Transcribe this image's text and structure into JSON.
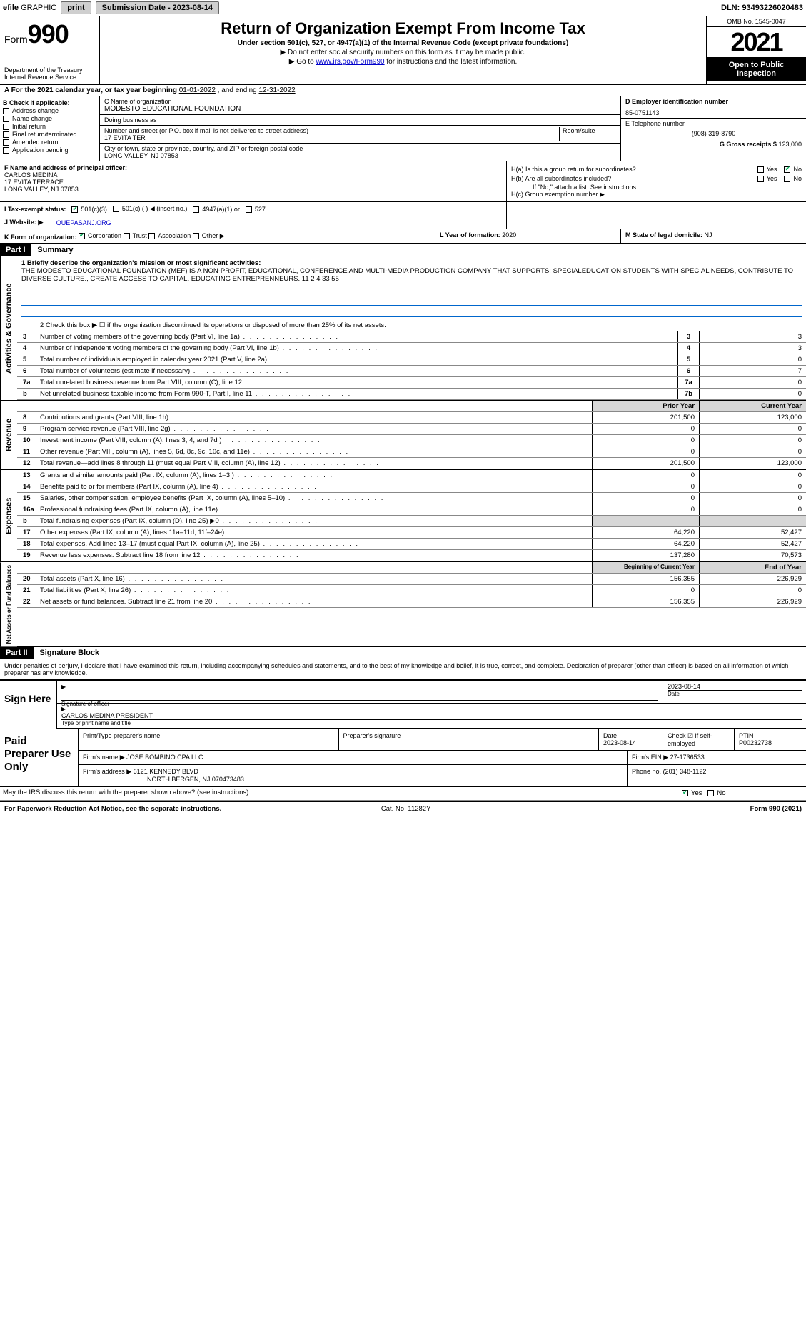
{
  "topbar": {
    "efile_prefix": "efile",
    "efile_graphic": "GRAPHIC",
    "print_btn": "print",
    "submission_label": "Submission Date - 2023-08-14",
    "dln": "DLN: 93493226020483"
  },
  "header": {
    "form_word": "Form",
    "form_num": "990",
    "dept": "Department of the Treasury",
    "irs": "Internal Revenue Service",
    "title": "Return of Organization Exempt From Income Tax",
    "subtitle": "Under section 501(c), 527, or 4947(a)(1) of the Internal Revenue Code (except private foundations)",
    "note1": "▶ Do not enter social security numbers on this form as it may be made public.",
    "note2_pre": "▶ Go to ",
    "note2_link": "www.irs.gov/Form990",
    "note2_post": " for instructions and the latest information.",
    "omb": "OMB No. 1545-0047",
    "year": "2021",
    "pub": "Open to Public Inspection"
  },
  "A": {
    "text_pre": "A For the 2021 calendar year, or tax year beginning ",
    "begin": "01-01-2022",
    "mid": " , and ending ",
    "end": "12-31-2022"
  },
  "B": {
    "label": "B Check if applicable:",
    "items": [
      "Address change",
      "Name change",
      "Initial return",
      "Final return/terminated",
      "Amended return",
      "Application pending"
    ]
  },
  "C": {
    "name_label": "C Name of organization",
    "name": "MODESTO EDUCATIONAL FOUNDATION",
    "dba_label": "Doing business as",
    "dba": "",
    "street_label": "Number and street (or P.O. box if mail is not delivered to street address)",
    "room_label": "Room/suite",
    "street": "17 EVITA TER",
    "city_label": "City or town, state or province, country, and ZIP or foreign postal code",
    "city": "LONG VALLEY, NJ  07853"
  },
  "D": {
    "label": "D Employer identification number",
    "value": "85-0751143"
  },
  "E": {
    "label": "E Telephone number",
    "value": "(908) 319-8790"
  },
  "G": {
    "label": "G Gross receipts $",
    "value": "123,000"
  },
  "F": {
    "label": "F Name and address of principal officer:",
    "name": "CARLOS MEDINA",
    "addr1": "17 EVITA TERRACE",
    "addr2": "LONG VALLEY, NJ  07853"
  },
  "H": {
    "a": "H(a)  Is this a group return for subordinates?",
    "b": "H(b)  Are all subordinates included?",
    "b_note": "If \"No,\" attach a list. See instructions.",
    "c": "H(c)  Group exemption number ▶",
    "yes": "Yes",
    "no": "No"
  },
  "I": {
    "label": "I   Tax-exempt status:",
    "opts": [
      "501(c)(3)",
      "501(c) (   ) ◀ (insert no.)",
      "4947(a)(1) or",
      "527"
    ]
  },
  "J": {
    "label": "J   Website: ▶",
    "value": "QUEPASANJ.ORG"
  },
  "K": {
    "label": "K Form of organization:",
    "opts": [
      "Corporation",
      "Trust",
      "Association",
      "Other ▶"
    ]
  },
  "L": {
    "label": "L Year of formation:",
    "value": "2020"
  },
  "M": {
    "label": "M State of legal domicile:",
    "value": "NJ"
  },
  "part1": {
    "hdr": "Part I",
    "title": "Summary",
    "q1_label": "1  Briefly describe the organization's mission or most significant activities:",
    "q1_text": "THE MODESTO EDUCATIONAL FOUNDATION (MEF) IS A NON-PROFIT, EDUCATIONAL, CONFERENCE AND MULTI-MEDIA PRODUCTION COMPANY THAT SUPPORTS: SPECIALEDUCATION STUDENTS WITH SPECIAL NEEDS, CONTRIBUTE TO DIVERSE CULTURE., CREATE ACCESS TO CAPITAL, EDUCATING ENTREPRENNEURS. 11 2 4 33 55",
    "q2": "2   Check this box ▶ ☐ if the organization discontinued its operations or disposed of more than 25% of its net assets.",
    "lines_gov": [
      {
        "n": "3",
        "t": "Number of voting members of the governing body (Part VI, line 1a)",
        "c": "3",
        "v": "3"
      },
      {
        "n": "4",
        "t": "Number of independent voting members of the governing body (Part VI, line 1b)",
        "c": "4",
        "v": "3"
      },
      {
        "n": "5",
        "t": "Total number of individuals employed in calendar year 2021 (Part V, line 2a)",
        "c": "5",
        "v": "0"
      },
      {
        "n": "6",
        "t": "Total number of volunteers (estimate if necessary)",
        "c": "6",
        "v": "7"
      },
      {
        "n": "7a",
        "t": "Total unrelated business revenue from Part VIII, column (C), line 12",
        "c": "7a",
        "v": "0"
      },
      {
        "n": "b",
        "t": "Net unrelated business taxable income from Form 990-T, Part I, line 11",
        "c": "7b",
        "v": "0"
      }
    ],
    "col_prior": "Prior Year",
    "col_curr": "Current Year",
    "lines_rev": [
      {
        "n": "8",
        "t": "Contributions and grants (Part VIII, line 1h)",
        "p": "201,500",
        "c": "123,000"
      },
      {
        "n": "9",
        "t": "Program service revenue (Part VIII, line 2g)",
        "p": "0",
        "c": "0"
      },
      {
        "n": "10",
        "t": "Investment income (Part VIII, column (A), lines 3, 4, and 7d )",
        "p": "0",
        "c": "0"
      },
      {
        "n": "11",
        "t": "Other revenue (Part VIII, column (A), lines 5, 6d, 8c, 9c, 10c, and 11e)",
        "p": "0",
        "c": "0"
      },
      {
        "n": "12",
        "t": "Total revenue—add lines 8 through 11 (must equal Part VIII, column (A), line 12)",
        "p": "201,500",
        "c": "123,000"
      }
    ],
    "lines_exp": [
      {
        "n": "13",
        "t": "Grants and similar amounts paid (Part IX, column (A), lines 1–3 )",
        "p": "0",
        "c": "0"
      },
      {
        "n": "14",
        "t": "Benefits paid to or for members (Part IX, column (A), line 4)",
        "p": "0",
        "c": "0"
      },
      {
        "n": "15",
        "t": "Salaries, other compensation, employee benefits (Part IX, column (A), lines 5–10)",
        "p": "0",
        "c": "0"
      },
      {
        "n": "16a",
        "t": "Professional fundraising fees (Part IX, column (A), line 11e)",
        "p": "0",
        "c": "0"
      },
      {
        "n": "b",
        "t": "Total fundraising expenses (Part IX, column (D), line 25) ▶0",
        "p": "",
        "c": "",
        "shade": true
      },
      {
        "n": "17",
        "t": "Other expenses (Part IX, column (A), lines 11a–11d, 11f–24e)",
        "p": "64,220",
        "c": "52,427"
      },
      {
        "n": "18",
        "t": "Total expenses. Add lines 13–17 (must equal Part IX, column (A), line 25)",
        "p": "64,220",
        "c": "52,427"
      },
      {
        "n": "19",
        "t": "Revenue less expenses. Subtract line 18 from line 12",
        "p": "137,280",
        "c": "70,573"
      }
    ],
    "col_beg": "Beginning of Current Year",
    "col_end": "End of Year",
    "lines_net": [
      {
        "n": "20",
        "t": "Total assets (Part X, line 16)",
        "p": "156,355",
        "c": "226,929"
      },
      {
        "n": "21",
        "t": "Total liabilities (Part X, line 26)",
        "p": "0",
        "c": "0"
      },
      {
        "n": "22",
        "t": "Net assets or fund balances. Subtract line 21 from line 20",
        "p": "156,355",
        "c": "226,929"
      }
    ],
    "side_gov": "Activities & Governance",
    "side_rev": "Revenue",
    "side_exp": "Expenses",
    "side_net": "Net Assets or Fund Balances"
  },
  "part2": {
    "hdr": "Part II",
    "title": "Signature Block",
    "penalties": "Under penalties of perjury, I declare that I have examined this return, including accompanying schedules and statements, and to the best of my knowledge and belief, it is true, correct, and complete. Declaration of preparer (other than officer) is based on all information of which preparer has any knowledge."
  },
  "sign": {
    "label": "Sign Here",
    "sig_label": "Signature of officer",
    "date_label": "Date",
    "date": "2023-08-14",
    "name": "CARLOS MEDINA  PRESIDENT",
    "name_label": "Type or print name and title"
  },
  "paid": {
    "label": "Paid Preparer Use Only",
    "h1": "Print/Type preparer's name",
    "h2": "Preparer's signature",
    "h3": "Date",
    "h3v": "2023-08-14",
    "h4": "Check ☑ if self-employed",
    "h5": "PTIN",
    "h5v": "P00232738",
    "firm_label": "Firm's name    ▶",
    "firm": "JOSE BOMBINO CPA LLC",
    "ein_label": "Firm's EIN ▶",
    "ein": "27-1736533",
    "addr_label": "Firm's address ▶",
    "addr1": "6121 KENNEDY BLVD",
    "addr2": "NORTH BERGEN, NJ  070473483",
    "phone_label": "Phone no.",
    "phone": "(201) 348-1122",
    "may": "May the IRS discuss this return with the preparer shown above? (see instructions)",
    "yes": "Yes",
    "no": "No"
  },
  "footer": {
    "l": "For Paperwork Reduction Act Notice, see the separate instructions.",
    "m": "Cat. No. 11282Y",
    "r": "Form 990 (2021)"
  }
}
